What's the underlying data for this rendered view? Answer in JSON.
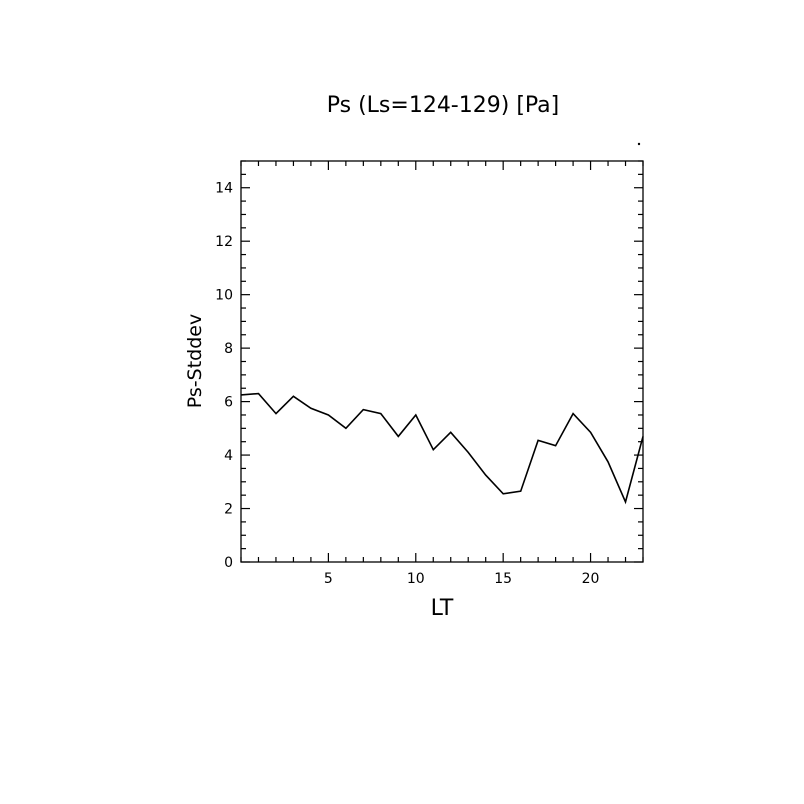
{
  "chart_data": {
    "type": "line",
    "title": "Ps (Ls=124-129) [Pa]",
    "xlabel": "LT",
    "ylabel": "Ps-Stddev",
    "xlim": [
      0,
      23
    ],
    "ylim": [
      0,
      15
    ],
    "xticks": [
      5,
      10,
      15,
      20
    ],
    "yticks": [
      0,
      2,
      4,
      6,
      8,
      10,
      12,
      14
    ],
    "grid": false,
    "series": [
      {
        "x": [
          0,
          1,
          2,
          3,
          4,
          5,
          6,
          7,
          8,
          9,
          10,
          11,
          12,
          13,
          14,
          15,
          16,
          17,
          18,
          19,
          20,
          21,
          22,
          23
        ],
        "values": [
          6.25,
          6.3,
          5.55,
          6.2,
          5.75,
          5.5,
          5.0,
          5.7,
          5.55,
          4.7,
          5.5,
          4.2,
          4.85,
          4.1,
          3.25,
          2.55,
          2.65,
          4.55,
          4.35,
          5.55,
          4.85,
          3.75,
          2.25,
          4.7
        ]
      }
    ]
  }
}
